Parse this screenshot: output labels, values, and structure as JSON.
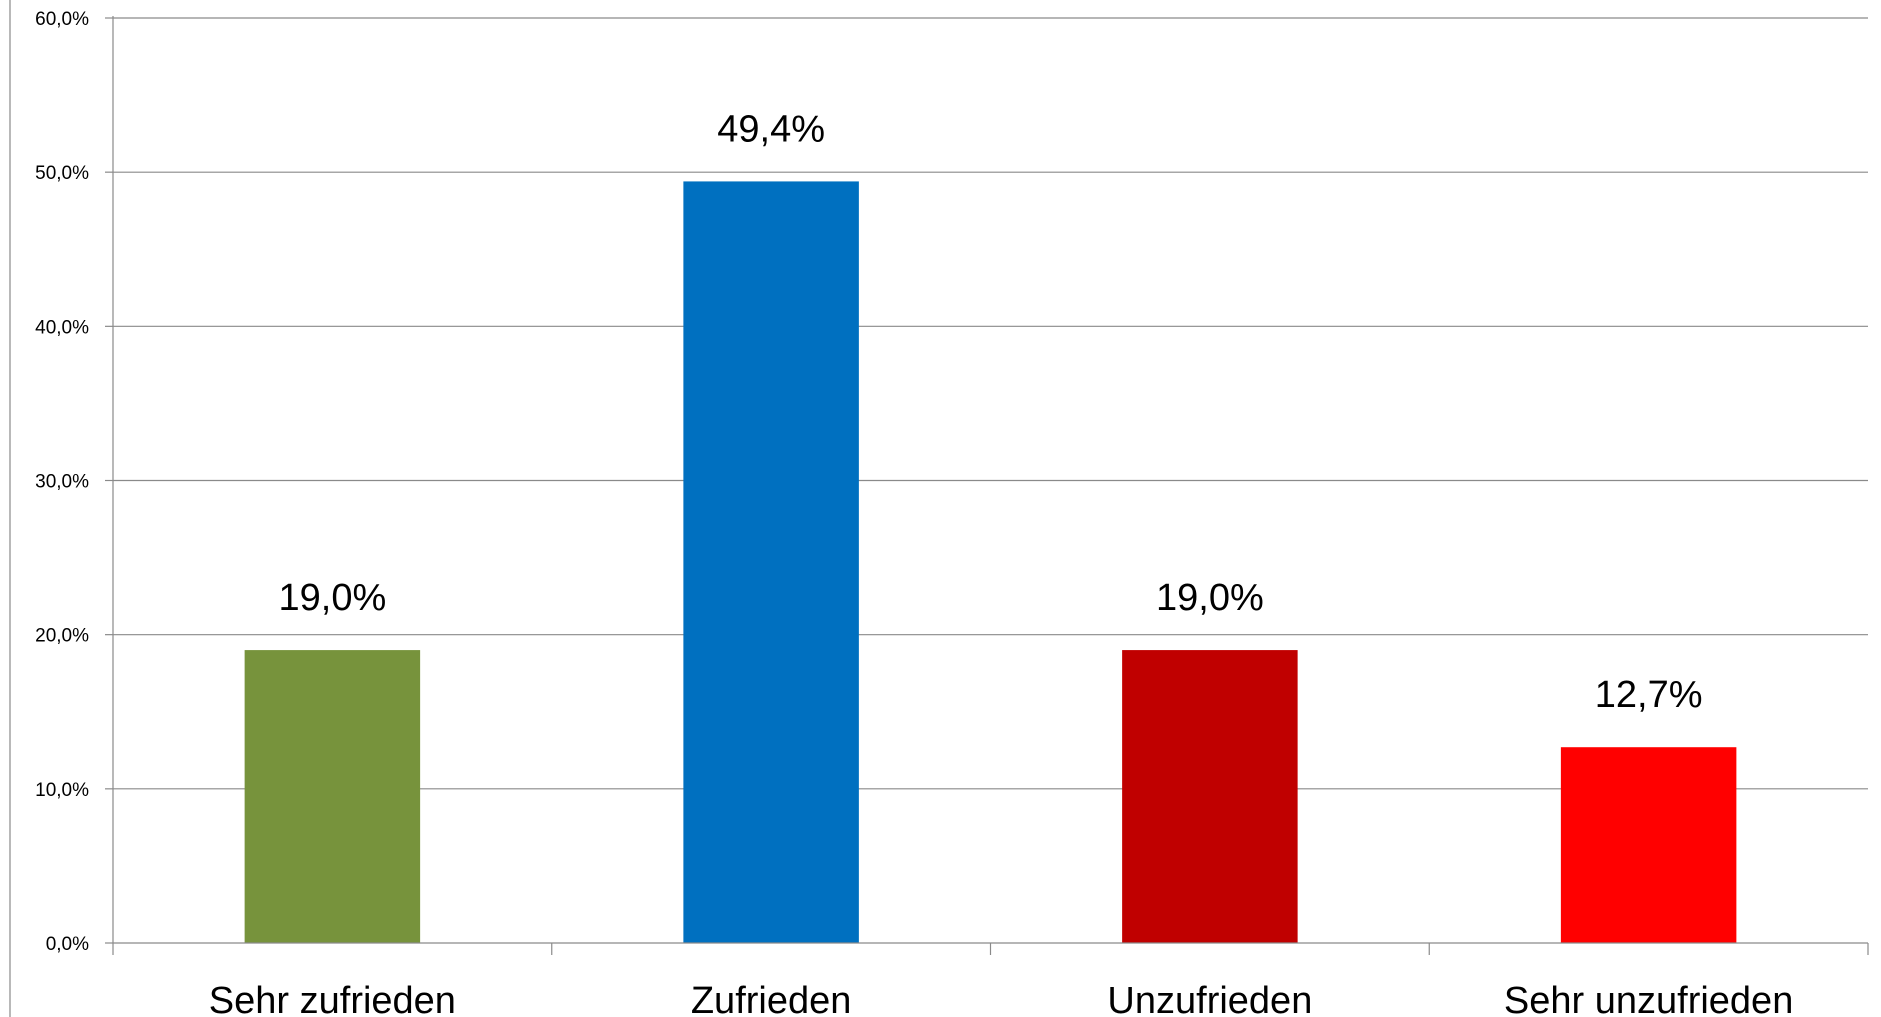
{
  "chart_data": {
    "type": "bar",
    "title": "",
    "xlabel": "",
    "ylabel": "",
    "categories": [
      "Sehr zufrieden",
      "Zufrieden",
      "Unzufrieden",
      "Sehr unzufrieden"
    ],
    "values": [
      19.0,
      49.4,
      19.0,
      12.7
    ],
    "value_labels": [
      "19,0%",
      "49,4%",
      "19,0%",
      "12,7%"
    ],
    "bar_colors": [
      "#77933c",
      "#0070c0",
      "#c00000",
      "#ff0000"
    ],
    "ylim": [
      0,
      60
    ],
    "y_ticks": [
      0,
      10,
      20,
      30,
      40,
      50,
      60
    ],
    "y_tick_labels": [
      "0,0%",
      "10,0%",
      "20,0%",
      "30,0%",
      "40,0%",
      "50,0%",
      "60,0%"
    ],
    "grid": true,
    "legend": "none"
  }
}
